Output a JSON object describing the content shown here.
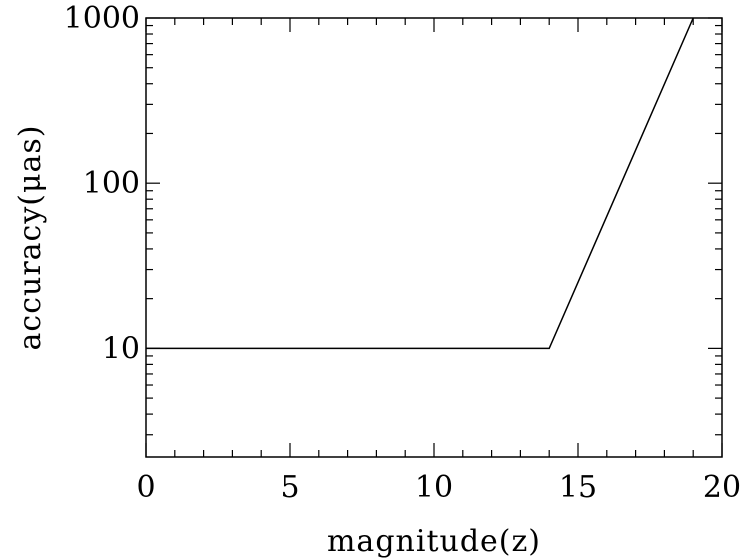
{
  "chart_data": {
    "type": "line",
    "title": "",
    "xlabel": "magnitude(z)",
    "ylabel": "accuracy(μas)",
    "xlim": [
      0,
      20
    ],
    "ylim": [
      2.2,
      1000
    ],
    "yscale": "log",
    "grid": false,
    "x_ticks": [
      0,
      5,
      10,
      15,
      20
    ],
    "x_tick_labels": [
      "0",
      "5",
      "10",
      "15",
      "20"
    ],
    "y_ticks": [
      10,
      100,
      1000
    ],
    "y_tick_labels": [
      "10",
      "100",
      "1000"
    ],
    "series": [
      {
        "x": [
          0,
          14,
          19
        ],
        "y": [
          10,
          10,
          1000
        ]
      }
    ],
    "colors": {
      "line": "#000000",
      "axes": "#000000",
      "background": "#ffffff"
    }
  }
}
